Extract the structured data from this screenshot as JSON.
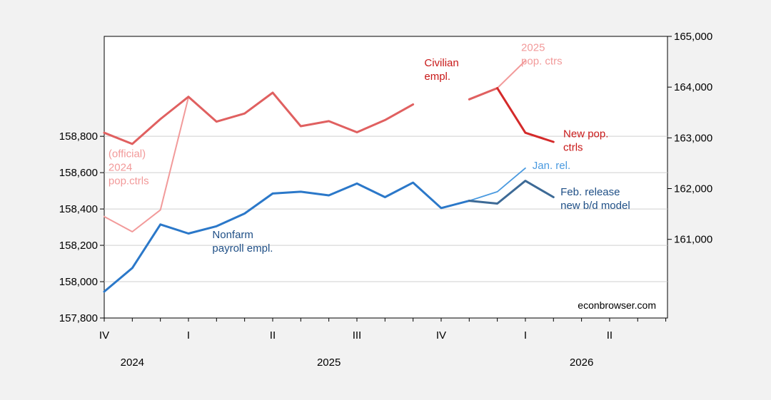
{
  "chart_data": {
    "type": "line",
    "months": [
      "2024-10",
      "2024-11",
      "2024-12",
      "2025-01",
      "2025-02",
      "2025-03",
      "2025-04",
      "2025-05",
      "2025-06",
      "2025-07",
      "2025-08",
      "2025-09",
      "2025-10",
      "2025-11",
      "2025-12",
      "2026-01",
      "2026-02"
    ],
    "left_axis": {
      "ylim": [
        157800,
        159350
      ],
      "ticks": [
        157800,
        158000,
        158200,
        158400,
        158600,
        158800
      ],
      "tick_labels": [
        "157,800",
        "158,000",
        "158,200",
        "158,400",
        "158,600",
        "158,800"
      ]
    },
    "right_axis": {
      "ylim": [
        159450,
        165000
      ],
      "ticks": [
        161000,
        162000,
        163000,
        164000,
        165000
      ],
      "tick_labels": [
        "161,000",
        "162,000",
        "163,000",
        "164,000",
        "165,000"
      ]
    },
    "x_axis": {
      "quarter_labels": [
        {
          "month": "2024-10",
          "label": "IV"
        },
        {
          "month": "2025-01",
          "label": "I"
        },
        {
          "month": "2025-04",
          "label": "II"
        },
        {
          "month": "2025-07",
          "label": "III"
        },
        {
          "month": "2025-10",
          "label": "IV"
        },
        {
          "month": "2026-01",
          "label": "I"
        },
        {
          "month": "2026-04",
          "label": "II"
        }
      ],
      "year_labels": [
        {
          "month": "2024-11",
          "label": "2024"
        },
        {
          "month": "2025-06",
          "label": "2025"
        },
        {
          "month": "2026-03",
          "label": "2026"
        }
      ]
    },
    "series": [
      {
        "axis": "left",
        "color": "#2b78c9",
        "width": 3,
        "values": [
          157945,
          158075,
          158315,
          158265,
          158305,
          158375,
          158485,
          158495,
          158475,
          158540,
          158465,
          158545,
          158405,
          158445,
          null,
          null,
          null
        ]
      },
      {
        "axis": "left",
        "color": "#4a9ae0",
        "width": 1.8,
        "values": [
          null,
          null,
          null,
          null,
          null,
          null,
          null,
          null,
          null,
          null,
          null,
          null,
          null,
          158445,
          158495,
          158625,
          null
        ]
      },
      {
        "axis": "left",
        "color": "#3d6a96",
        "width": 3,
        "values": [
          null,
          null,
          null,
          null,
          null,
          null,
          null,
          null,
          null,
          null,
          null,
          null,
          null,
          158445,
          158430,
          158555,
          158465
        ]
      },
      {
        "axis": "right",
        "color": "#f29a9a",
        "width": 2,
        "values": [
          161450,
          161150,
          161580,
          163800,
          null,
          null,
          null,
          null,
          null,
          null,
          null,
          null,
          null,
          null,
          null,
          null,
          null
        ]
      },
      {
        "axis": "right",
        "color": "#f29a9a",
        "width": 2,
        "values": [
          null,
          null,
          null,
          null,
          null,
          null,
          null,
          null,
          null,
          null,
          null,
          null,
          null,
          null,
          163980,
          164520,
          null
        ]
      },
      {
        "axis": "right",
        "color": "#e06060",
        "width": 3,
        "values": [
          163100,
          162880,
          163370,
          163810,
          163320,
          163480,
          163890,
          163230,
          163330,
          163110,
          163350,
          163660,
          null,
          163760,
          163980,
          null,
          null
        ]
      },
      {
        "axis": "right",
        "color": "#d42a2a",
        "width": 3,
        "values": [
          null,
          null,
          null,
          null,
          null,
          null,
          null,
          null,
          null,
          null,
          null,
          null,
          null,
          null,
          163980,
          163100,
          162920
        ]
      }
    ],
    "annotations": [
      {
        "lines": [
          "2025",
          "pop. ctrs"
        ],
        "color": "#f29a9a",
        "month_index": 14.85,
        "left_value": 159270
      },
      {
        "lines": [
          "Civilian",
          "empl."
        ],
        "color": "#c81818",
        "month_index": 11.4,
        "left_value": 159185
      },
      {
        "lines": [
          "New pop.",
          "ctrls"
        ],
        "color": "#c81818",
        "month_index": 16.35,
        "left_value": 158795
      },
      {
        "lines": [
          "(official)",
          "2024",
          "pop.ctrls"
        ],
        "color": "#f29a9a",
        "month_index": 0.15,
        "left_value": 158685
      },
      {
        "lines": [
          "Jan. rel."
        ],
        "color": "#4a9ae0",
        "month_index": 15.25,
        "left_value": 158620
      },
      {
        "lines": [
          "Feb. release",
          "new b/d model"
        ],
        "color": "#1f4f86",
        "month_index": 16.25,
        "left_value": 158475
      },
      {
        "lines": [
          "Nonfarm",
          "payroll empl."
        ],
        "color": "#1f4f86",
        "month_index": 3.85,
        "left_value": 158240
      }
    ],
    "grid": true,
    "watermark": "econbrowser.com"
  }
}
